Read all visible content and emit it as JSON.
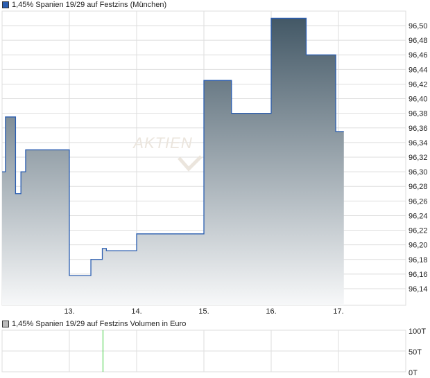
{
  "chart_data": [
    {
      "type": "area",
      "title": "1,45% Spanien 19/29 auf Festzins (München)",
      "step": true,
      "x_tick_labels": [
        "13.",
        "14.",
        "15.",
        "16.",
        "17."
      ],
      "x_ticks": [
        13,
        14,
        15,
        16,
        17
      ],
      "xlim": [
        12.0,
        18.0
      ],
      "y_tick_labels": [
        "96,50",
        "96,48",
        "96,46",
        "96,44",
        "96,42",
        "96,40",
        "96,38",
        "96,36",
        "96,34",
        "96,32",
        "96,30",
        "96,28",
        "96,26",
        "96,24",
        "96,22",
        "96,20",
        "96,18",
        "96,16",
        "96,14"
      ],
      "ylim": [
        96.12,
        96.52
      ],
      "grid": true,
      "x": [
        12.0,
        12.05,
        12.2,
        12.28,
        12.35,
        13.0,
        13.32,
        13.49,
        13.55,
        14.0,
        15.0,
        15.41,
        16.0,
        16.52,
        16.96,
        17.08
      ],
      "y": [
        96.3,
        96.375,
        96.27,
        96.3,
        96.33,
        96.158,
        96.18,
        96.195,
        96.192,
        96.215,
        96.425,
        96.38,
        96.51,
        96.46,
        96.355,
        96.355
      ],
      "line_color": "#2a5db0",
      "fill_top_color": "#435866",
      "fill_bottom_color": "#f7f8f9",
      "legend_color": "#2a5db0",
      "watermark": "AKTIEN"
    },
    {
      "type": "bar",
      "title": "1,45% Spanien 19/29 auf Festzins Volumen in Euro",
      "y_tick_labels": [
        "100T",
        "50T",
        "0T"
      ],
      "ylim": [
        0,
        100000
      ],
      "xlim": [
        12.0,
        18.0
      ],
      "x": [
        13.5
      ],
      "values": [
        100000
      ],
      "bar_color": "#33cc33",
      "legend_color": "#bbbbbb"
    }
  ]
}
